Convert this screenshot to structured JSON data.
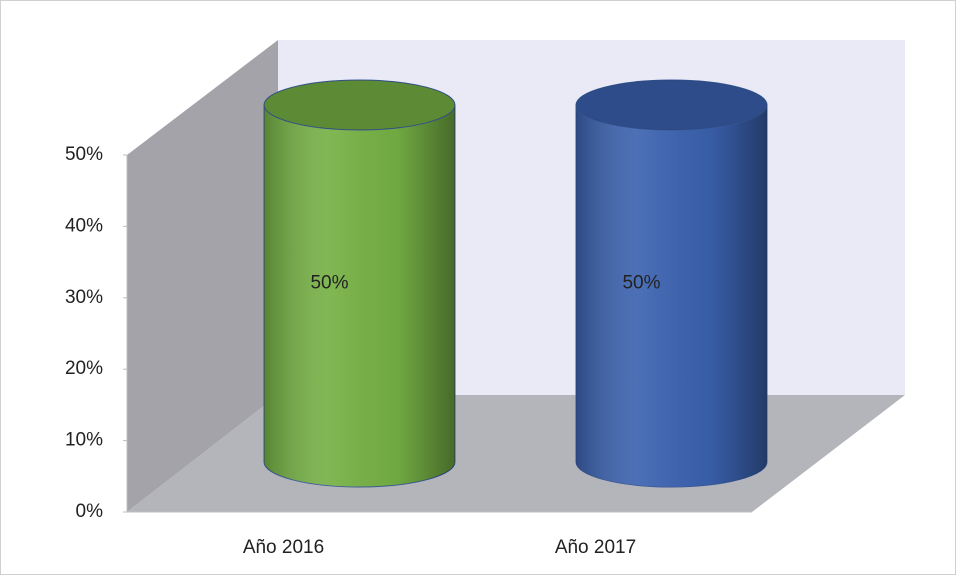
{
  "chart_data": {
    "type": "bar3d-cylinder",
    "categories": [
      "Año 2016",
      "Año 2017"
    ],
    "values": [
      50,
      50
    ],
    "value_labels": [
      "50%",
      "50%"
    ],
    "colors": [
      "#76b144",
      "#3b62b0"
    ],
    "ylim": [
      0,
      50
    ],
    "yticks": [
      {
        "value": 0,
        "label": "0%"
      },
      {
        "value": 10,
        "label": "10%"
      },
      {
        "value": 20,
        "label": "20%"
      },
      {
        "value": 30,
        "label": "30%"
      },
      {
        "value": 40,
        "label": "40%"
      },
      {
        "value": 50,
        "label": "50%"
      }
    ]
  }
}
